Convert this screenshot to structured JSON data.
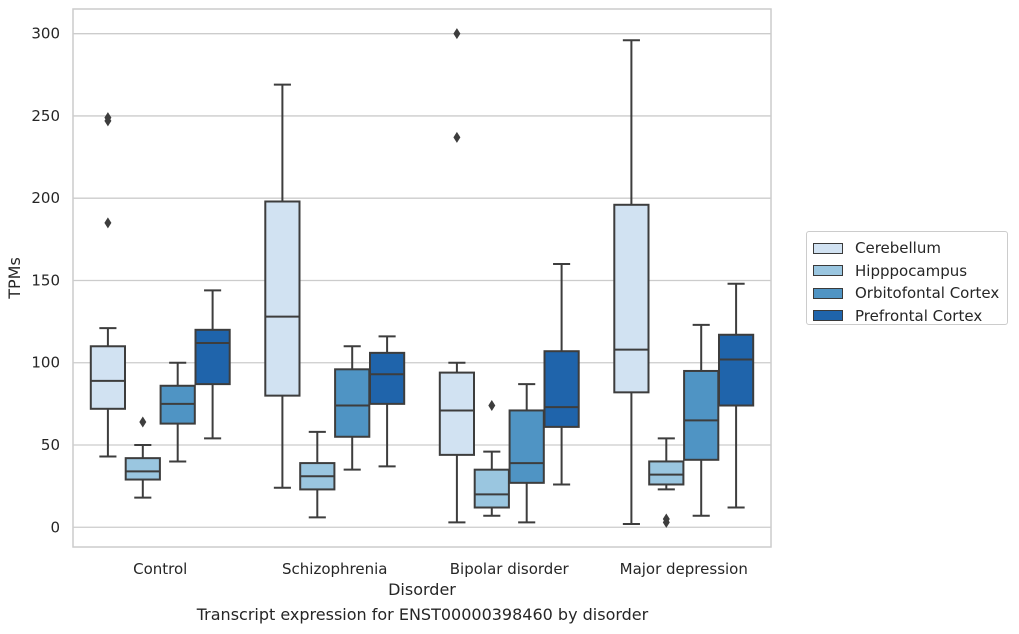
{
  "chart_data": {
    "type": "box",
    "caption": "Transcript expression for ENST00000398460 by disorder",
    "xlabel": "Disorder",
    "ylabel": "TPMs",
    "ylim": [
      -12,
      315
    ],
    "yticks": [
      0,
      50,
      100,
      150,
      200,
      250,
      300
    ],
    "grid": true,
    "legend_position": "right",
    "categories": [
      "Control",
      "Schizophrenia",
      "Bipolar disorder",
      "Major depression"
    ],
    "series": [
      {
        "name": "Cerebellum",
        "color": "#d1e2f2",
        "boxes": [
          {
            "whisker_low": 43,
            "q1": 72,
            "median": 89,
            "q3": 110,
            "whisker_high": 121,
            "outliers": [
              185,
              247,
              249
            ]
          },
          {
            "whisker_low": 24,
            "q1": 80,
            "median": 128,
            "q3": 198,
            "whisker_high": 269,
            "outliers": []
          },
          {
            "whisker_low": 3,
            "q1": 44,
            "median": 71,
            "q3": 94,
            "whisker_high": 100,
            "outliers": [
              237,
              300
            ]
          },
          {
            "whisker_low": 2,
            "q1": 82,
            "median": 108,
            "q3": 196,
            "whisker_high": 296,
            "outliers": []
          }
        ]
      },
      {
        "name": "Hipppocampus",
        "color": "#9ac6e0",
        "boxes": [
          {
            "whisker_low": 18,
            "q1": 29,
            "median": 34,
            "q3": 42,
            "whisker_high": 50,
            "outliers": [
              64
            ]
          },
          {
            "whisker_low": 6,
            "q1": 23,
            "median": 31,
            "q3": 39,
            "whisker_high": 58,
            "outliers": []
          },
          {
            "whisker_low": 7,
            "q1": 12,
            "median": 20,
            "q3": 35,
            "whisker_high": 46,
            "outliers": [
              74
            ]
          },
          {
            "whisker_low": 23,
            "q1": 26,
            "median": 32,
            "q3": 40,
            "whisker_high": 54,
            "outliers": [
              3,
              5
            ]
          }
        ]
      },
      {
        "name": "Orbitofontal Cortex",
        "color": "#4f94c4",
        "boxes": [
          {
            "whisker_low": 40,
            "q1": 63,
            "median": 75,
            "q3": 86,
            "whisker_high": 100,
            "outliers": []
          },
          {
            "whisker_low": 35,
            "q1": 55,
            "median": 74,
            "q3": 96,
            "whisker_high": 110,
            "outliers": []
          },
          {
            "whisker_low": 3,
            "q1": 27,
            "median": 39,
            "q3": 71,
            "whisker_high": 87,
            "outliers": []
          },
          {
            "whisker_low": 7,
            "q1": 41,
            "median": 65,
            "q3": 95,
            "whisker_high": 123,
            "outliers": []
          }
        ]
      },
      {
        "name": "Prefrontal Cortex",
        "color": "#1f64ab",
        "boxes": [
          {
            "whisker_low": 54,
            "q1": 87,
            "median": 112,
            "q3": 120,
            "whisker_high": 144,
            "outliers": []
          },
          {
            "whisker_low": 37,
            "q1": 75,
            "median": 93,
            "q3": 106,
            "whisker_high": 116,
            "outliers": []
          },
          {
            "whisker_low": 26,
            "q1": 61,
            "median": 73,
            "q3": 107,
            "whisker_high": 160,
            "outliers": []
          },
          {
            "whisker_low": 12,
            "q1": 74,
            "median": 102,
            "q3": 117,
            "whisker_high": 148,
            "outliers": []
          }
        ]
      }
    ]
  }
}
